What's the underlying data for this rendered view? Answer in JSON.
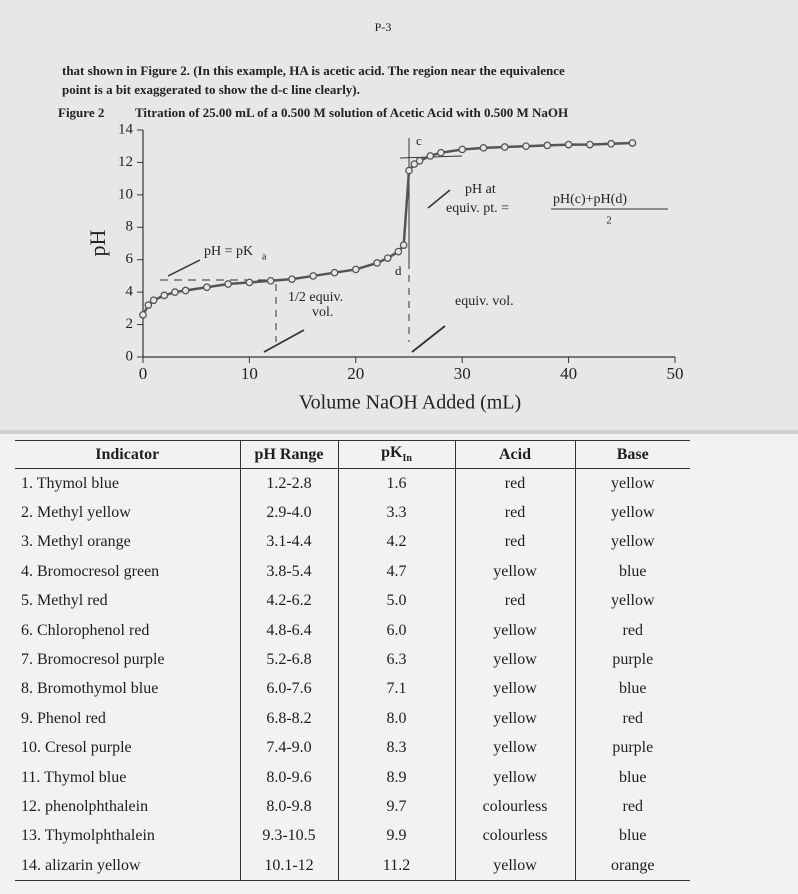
{
  "page_number": "P-3",
  "paragraph": [
    "that shown in Figure 2.  (In this example, HA is acetic acid.  The region near the equivalence",
    "point is a bit exaggerated to show the d-c line clearly)."
  ],
  "chart_data": {
    "type": "line",
    "figure_label": "Figure 2",
    "title": "Titration of 25.00 mL of a 0.500 M solution of Acetic Acid with 0.500 M NaOH",
    "x_label": "Volume NaOH Added (mL)",
    "y_label": "pH",
    "x": [
      0,
      0.5,
      1,
      2,
      3,
      4,
      6,
      8,
      10,
      12,
      14,
      16,
      18,
      20,
      22,
      23,
      24,
      24.5,
      25,
      25.5,
      26,
      27,
      28,
      30,
      32,
      34,
      36,
      38,
      40,
      42,
      44,
      46
    ],
    "values": [
      2.6,
      3.2,
      3.5,
      3.8,
      4.0,
      4.1,
      4.3,
      4.5,
      4.6,
      4.7,
      4.8,
      5.0,
      5.2,
      5.4,
      5.8,
      6.1,
      6.5,
      6.9,
      11.5,
      11.9,
      12.1,
      12.4,
      12.6,
      12.8,
      12.9,
      12.95,
      13.0,
      13.05,
      13.1,
      13.1,
      13.15,
      13.2
    ],
    "color": "#555555",
    "xlim": [
      0,
      50
    ],
    "xticks": [
      0,
      10,
      20,
      30,
      40,
      50
    ],
    "ylim": [
      0,
      14
    ],
    "yticks": [
      0,
      2,
      4,
      6,
      8,
      10,
      12,
      14
    ],
    "annotations": {
      "pka_label": "pH = pK",
      "pka_subscript": "a",
      "half_equiv": [
        "1/2 equiv.",
        "vol."
      ],
      "equiv_vol": "equiv. vol.",
      "equiv_pt": [
        "pH at",
        "equiv. pt. ="
      ],
      "numerator": "pH(c)+pH(d)",
      "denominator": "2",
      "point_c": "c",
      "point_d": "d"
    }
  },
  "table": {
    "header": [
      "Indicator",
      "pH Range",
      "pK",
      "Acid",
      "Base"
    ],
    "header_subscript": "In",
    "rows": [
      [
        "1. Thymol blue",
        "1.2-2.8",
        "1.6",
        "red",
        "yellow"
      ],
      [
        "2. Methyl yellow",
        "2.9-4.0",
        "3.3",
        "red",
        "yellow"
      ],
      [
        "3. Methyl orange",
        "3.1-4.4",
        "4.2",
        "red",
        "yellow"
      ],
      [
        "4. Bromocresol green",
        "3.8-5.4",
        "4.7",
        "yellow",
        "blue"
      ],
      [
        "5. Methyl red",
        "4.2-6.2",
        "5.0",
        "red",
        "yellow"
      ],
      [
        "6. Chlorophenol red",
        "4.8-6.4",
        "6.0",
        "yellow",
        "red"
      ],
      [
        "7. Bromocresol purple",
        "5.2-6.8",
        "6.3",
        "yellow",
        "purple"
      ],
      [
        "8. Bromothymol blue",
        "6.0-7.6",
        "7.1",
        "yellow",
        "blue"
      ],
      [
        "9. Phenol red",
        "6.8-8.2",
        "8.0",
        "yellow",
        "red"
      ],
      [
        "10. Cresol purple",
        "7.4-9.0",
        "8.3",
        "yellow",
        "purple"
      ],
      [
        "11. Thymol blue",
        "8.0-9.6",
        "8.9",
        "yellow",
        "blue"
      ],
      [
        "12. phenolphthalein",
        "8.0-9.8",
        "9.7",
        "colourless",
        "red"
      ],
      [
        "13. Thymolphthalein",
        "9.3-10.5",
        "9.9",
        "colourless",
        "blue"
      ],
      [
        "14. alizarin yellow",
        "10.1-12",
        "11.2",
        "yellow",
        "orange"
      ]
    ]
  }
}
